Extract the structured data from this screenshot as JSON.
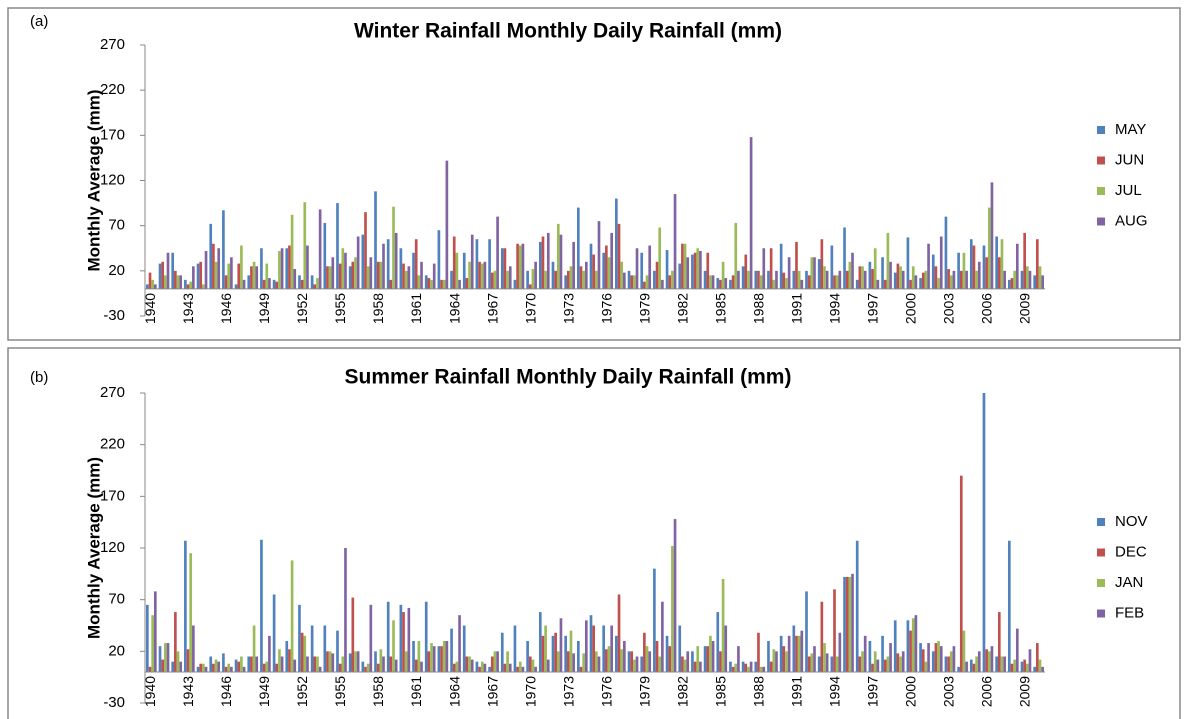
{
  "chart_data": [
    {
      "type": "bar",
      "panel_label": "(a)",
      "title": "Winter Rainfall Monthly Daily Rainfall (mm)",
      "y_label": "Monthly Average (mm)",
      "categories": [
        "1940",
        null,
        null,
        "1943",
        null,
        null,
        "1946",
        null,
        null,
        "1949",
        null,
        null,
        "1952",
        null,
        null,
        "1955",
        null,
        null,
        "1958",
        null,
        null,
        "1961",
        null,
        null,
        "1964",
        null,
        null,
        "1967",
        null,
        null,
        "1970",
        null,
        null,
        "1973",
        null,
        null,
        "1976",
        null,
        null,
        "1979",
        null,
        null,
        "1982",
        null,
        null,
        "1985",
        null,
        null,
        "1988",
        null,
        null,
        "1991",
        null,
        null,
        "1994",
        null,
        null,
        "1997",
        null,
        null,
        "2000",
        null,
        null,
        "2003",
        null,
        null,
        "2006",
        null,
        null,
        "2009",
        null
      ],
      "series": [
        {
          "name": "MAY",
          "color": "#4f81bd",
          "values": [
            5,
            28,
            40,
            10,
            28,
            72,
            87,
            5,
            15,
            45,
            10,
            45,
            15,
            15,
            73,
            95,
            25,
            60,
            108,
            55,
            45,
            40,
            15,
            65,
            20,
            40,
            55,
            55,
            45,
            10,
            20,
            52,
            30,
            15,
            90,
            50,
            40,
            100,
            20,
            40,
            20,
            43,
            28,
            38,
            20,
            12,
            10,
            25,
            20,
            20,
            50,
            20,
            20,
            33,
            48,
            68,
            10,
            30,
            35,
            18,
            57,
            12,
            38,
            80,
            40,
            55,
            48,
            58,
            10,
            20,
            15
          ]
        },
        {
          "name": "JUN",
          "color": "#c0504d",
          "values": [
            18,
            30,
            20,
            5,
            30,
            50,
            15,
            28,
            25,
            10,
            8,
            48,
            10,
            5,
            25,
            28,
            30,
            85,
            30,
            10,
            28,
            55,
            12,
            10,
            58,
            12,
            30,
            18,
            45,
            50,
            5,
            58,
            20,
            20,
            25,
            38,
            48,
            72,
            15,
            8,
            30,
            15,
            50,
            40,
            40,
            10,
            15,
            38,
            20,
            45,
            18,
            52,
            15,
            55,
            15,
            20,
            25,
            22,
            10,
            28,
            10,
            18,
            25,
            22,
            20,
            48,
            35,
            35,
            12,
            62,
            55
          ]
        },
        {
          "name": "JUL",
          "color": "#9bbb59",
          "values": [
            10,
            15,
            15,
            8,
            5,
            30,
            28,
            48,
            30,
            28,
            42,
            82,
            96,
            12,
            25,
            45,
            35,
            25,
            30,
            91,
            20,
            15,
            10,
            10,
            40,
            30,
            28,
            20,
            20,
            48,
            22,
            20,
            72,
            25,
            20,
            20,
            35,
            30,
            15,
            15,
            68,
            20,
            50,
            45,
            15,
            30,
            73,
            20,
            15,
            10,
            12,
            20,
            35,
            25,
            15,
            30,
            25,
            45,
            62,
            25,
            25,
            20,
            12,
            15,
            40,
            20,
            90,
            55,
            20,
            25,
            25
          ]
        },
        {
          "name": "AUG",
          "color": "#8064a2",
          "values": [
            5,
            40,
            15,
            25,
            42,
            45,
            35,
            10,
            25,
            12,
            45,
            22,
            48,
            88,
            35,
            40,
            58,
            35,
            50,
            62,
            25,
            30,
            28,
            142,
            10,
            60,
            30,
            80,
            25,
            50,
            30,
            62,
            60,
            52,
            30,
            75,
            62,
            18,
            45,
            48,
            10,
            105,
            35,
            42,
            15,
            12,
            20,
            168,
            45,
            20,
            35,
            10,
            35,
            20,
            20,
            40,
            20,
            10,
            30,
            20,
            15,
            50,
            58,
            20,
            20,
            30,
            118,
            20,
            50,
            20,
            15
          ]
        }
      ],
      "ylim": [
        -30,
        270
      ],
      "yticks": [
        -30,
        20,
        70,
        120,
        170,
        220,
        270
      ],
      "grid": false,
      "legend": "right"
    },
    {
      "type": "bar",
      "panel_label": "(b)",
      "title": "Summer Rainfall Monthly Daily Rainfall (mm)",
      "y_label": "Monthly Average (mm)",
      "categories": [
        "1940",
        null,
        null,
        "1943",
        null,
        null,
        "1946",
        null,
        null,
        "1949",
        null,
        null,
        "1952",
        null,
        null,
        "1955",
        null,
        null,
        "1958",
        null,
        null,
        "1961",
        null,
        null,
        "1964",
        null,
        null,
        "1967",
        null,
        null,
        "1970",
        null,
        null,
        "1973",
        null,
        null,
        "1976",
        null,
        null,
        "1979",
        null,
        null,
        "1982",
        null,
        null,
        "1985",
        null,
        null,
        "1988",
        null,
        null,
        "1991",
        null,
        null,
        "1994",
        null,
        null,
        "1997",
        null,
        null,
        "2000",
        null,
        null,
        "2003",
        null,
        null,
        "2006",
        null,
        null,
        "2009",
        null
      ],
      "series": [
        {
          "name": "NOV",
          "color": "#4f81bd",
          "values": [
            65,
            25,
            10,
            127,
            5,
            15,
            18,
            12,
            15,
            128,
            75,
            30,
            65,
            45,
            45,
            40,
            18,
            10,
            20,
            68,
            65,
            30,
            68,
            25,
            42,
            45,
            10,
            5,
            38,
            45,
            30,
            58,
            35,
            35,
            30,
            55,
            45,
            35,
            20,
            15,
            100,
            35,
            45,
            20,
            25,
            58,
            10,
            10,
            10,
            30,
            35,
            45,
            78,
            15,
            15,
            92,
            127,
            30,
            35,
            50,
            50,
            28,
            20,
            15,
            5,
            12,
            270,
            15,
            127,
            10,
            5
          ]
        },
        {
          "name": "DEC",
          "color": "#c0504d",
          "values": [
            5,
            12,
            58,
            22,
            8,
            8,
            5,
            10,
            15,
            8,
            8,
            22,
            38,
            15,
            20,
            8,
            72,
            5,
            8,
            15,
            58,
            12,
            20,
            25,
            8,
            15,
            5,
            15,
            8,
            5,
            15,
            35,
            38,
            20,
            5,
            45,
            22,
            75,
            20,
            38,
            30,
            25,
            15,
            10,
            25,
            20,
            5,
            8,
            38,
            10,
            25,
            35,
            15,
            68,
            80,
            92,
            15,
            8,
            12,
            18,
            40,
            22,
            28,
            15,
            190,
            8,
            22,
            58,
            8,
            12,
            28
          ]
        },
        {
          "name": "JAN",
          "color": "#9bbb59",
          "values": [
            55,
            28,
            20,
            115,
            8,
            12,
            8,
            15,
            45,
            10,
            22,
            108,
            35,
            15,
            20,
            15,
            20,
            8,
            22,
            50,
            20,
            30,
            28,
            30,
            10,
            15,
            10,
            20,
            20,
            10,
            12,
            45,
            20,
            40,
            18,
            20,
            25,
            22,
            12,
            25,
            15,
            122,
            12,
            25,
            35,
            90,
            8,
            5,
            5,
            22,
            20,
            35,
            18,
            28,
            15,
            92,
            20,
            20,
            15,
            15,
            52,
            10,
            30,
            20,
            40,
            15,
            20,
            15,
            12,
            8,
            12
          ]
        },
        {
          "name": "FEB",
          "color": "#8064a2",
          "values": [
            78,
            28,
            10,
            45,
            5,
            10,
            5,
            5,
            15,
            35,
            15,
            12,
            15,
            5,
            18,
            120,
            20,
            65,
            15,
            12,
            62,
            10,
            25,
            30,
            55,
            12,
            8,
            20,
            8,
            5,
            5,
            12,
            52,
            18,
            50,
            15,
            45,
            30,
            15,
            20,
            68,
            148,
            20,
            10,
            30,
            45,
            25,
            10,
            5,
            20,
            35,
            40,
            25,
            18,
            38,
            95,
            35,
            12,
            28,
            20,
            55,
            28,
            25,
            25,
            10,
            20,
            25,
            15,
            42,
            22,
            5
          ]
        }
      ],
      "ylim": [
        -30,
        270
      ],
      "yticks": [
        -30,
        20,
        70,
        120,
        170,
        220,
        270
      ],
      "grid": false,
      "legend": "right"
    }
  ]
}
